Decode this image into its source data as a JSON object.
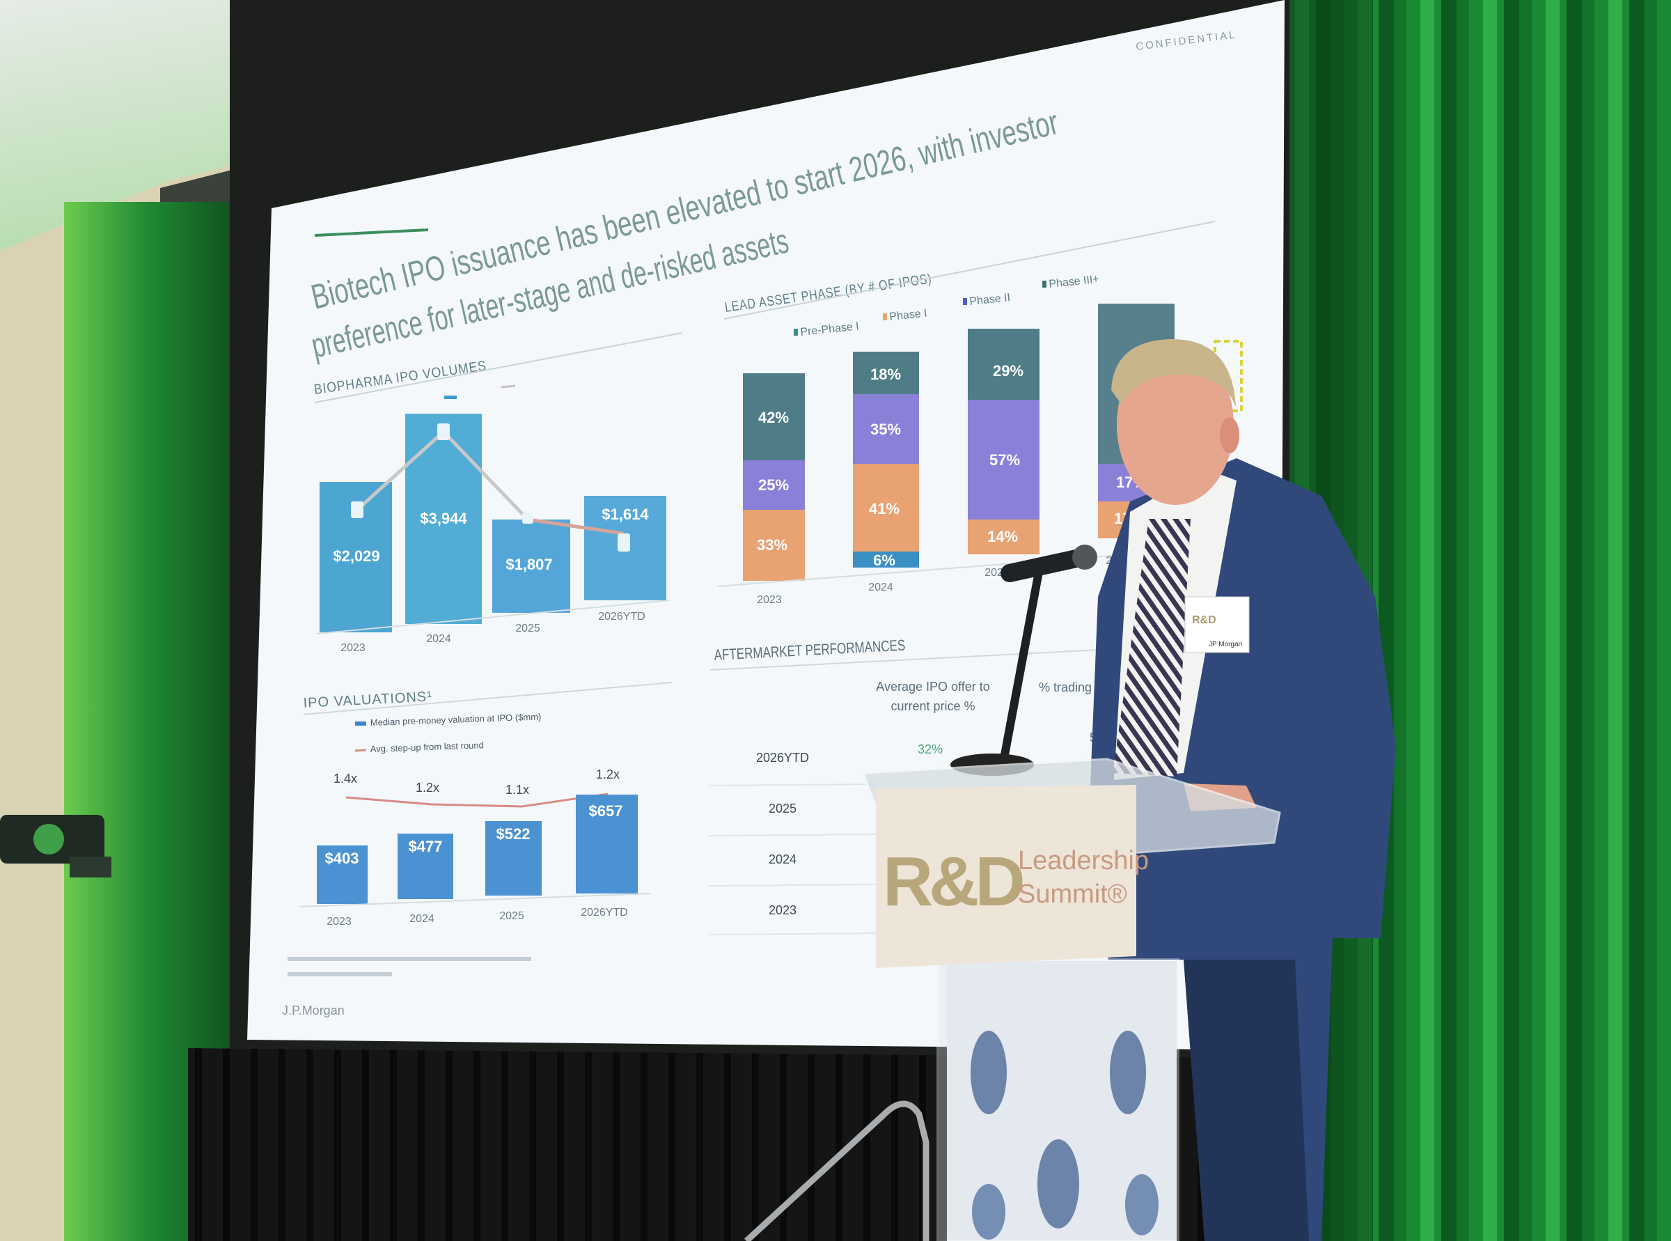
{
  "slide": {
    "confidential": "CONFIDENTIAL",
    "title_line1": "Biotech IPO issuance has been elevated to start 2026, with investor",
    "title_line2": "preference for later-stage and de-risked assets",
    "volumes": {
      "heading": "BIOPHARMA IPO VOLUMES",
      "categories": [
        "2023",
        "2024",
        "2025",
        "2026YTD"
      ],
      "values": [
        "$2,029",
        "$3,944",
        "$1,807",
        "$1,614"
      ]
    },
    "phase": {
      "heading": "LEAD ASSET PHASE (BY # OF IPOS)",
      "legend": [
        "Pre-Phase I",
        "Phase I",
        "Phase II",
        "Phase III+"
      ],
      "categories": [
        "2023",
        "2024",
        "2025",
        "2026"
      ],
      "segments": {
        "y2023": [
          "42%",
          "25%",
          "33%"
        ],
        "y2024": [
          "18%",
          "35%",
          "41%",
          "6%"
        ],
        "y2025": [
          "29%",
          "57%",
          "14%"
        ],
        "y2026": [
          "17%",
          "17%"
        ]
      },
      "colors": {
        "phase3": "#4f7d87",
        "phase2": "#8b80d8",
        "phase1": "#e9a272",
        "prephase": "#3a8fc4"
      }
    },
    "valuations": {
      "heading": "IPO VALUATIONS¹",
      "legend_bar": "Median pre-money valuation at IPO ($mm)",
      "legend_line": "Avg. step-up from last round",
      "categories": [
        "2023",
        "2024",
        "2025",
        "2026YTD"
      ],
      "values": [
        "$403",
        "$477",
        "$522",
        "$657"
      ],
      "stepups": [
        "1.4x",
        "1.2x",
        "1.1x",
        "1.2x"
      ]
    },
    "aftermarket": {
      "heading": "AFTERMARKET PERFORMANCES",
      "col1_line1": "Average IPO offer to",
      "col1_line2": "current price %",
      "col2": "% trading b",
      "rows": [
        "2026YTD",
        "2025",
        "2024",
        "2023"
      ],
      "value_2026": "32%",
      "col2_partial": "5"
    },
    "logo": "J.P.Morgan"
  },
  "podium": {
    "brand": "R&D",
    "line1": "Leadership",
    "line2": "Summit®",
    "colors": {
      "brand": "#b9a77c",
      "tagline": "#c79a82"
    }
  },
  "badge": {
    "brand": "R&D",
    "company": "JP Morgan"
  }
}
